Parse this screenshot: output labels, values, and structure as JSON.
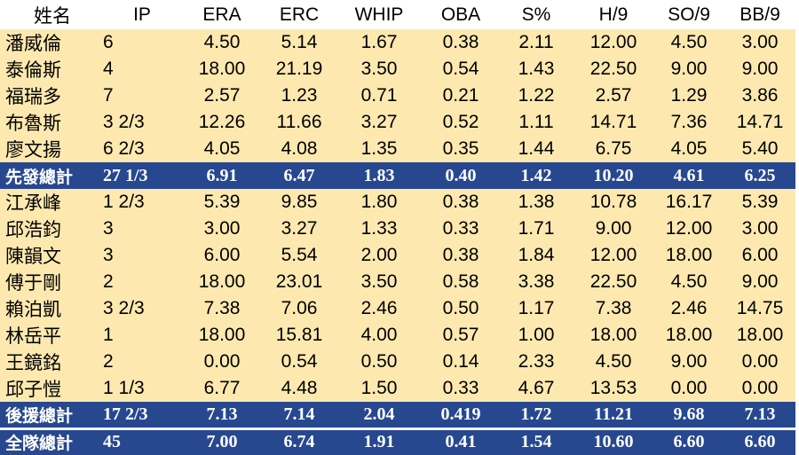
{
  "headers": {
    "name": "姓名",
    "ip": "IP",
    "era": "ERA",
    "erc": "ERC",
    "whip": "WHIP",
    "oba": "OBA",
    "s": "S%",
    "h9": "H/9",
    "so9": "SO/9",
    "bb9": "BB/9"
  },
  "starters": [
    {
      "name": "潘威倫",
      "ip": "6",
      "era": "4.50",
      "erc": "5.14",
      "whip": "1.67",
      "oba": "0.38",
      "s": "2.11",
      "h9": "12.00",
      "so9": "4.50",
      "bb9": "3.00"
    },
    {
      "name": "泰倫斯",
      "ip": "4",
      "era": "18.00",
      "erc": "21.19",
      "whip": "3.50",
      "oba": "0.54",
      "s": "1.43",
      "h9": "22.50",
      "so9": "9.00",
      "bb9": "9.00"
    },
    {
      "name": "福瑞多",
      "ip": "7",
      "era": "2.57",
      "erc": "1.23",
      "whip": "0.71",
      "oba": "0.21",
      "s": "1.22",
      "h9": "2.57",
      "so9": "1.29",
      "bb9": "3.86"
    },
    {
      "name": "布魯斯",
      "ip": "3 2/3",
      "era": "12.26",
      "erc": "11.66",
      "whip": "3.27",
      "oba": "0.52",
      "s": "1.11",
      "h9": "14.71",
      "so9": "7.36",
      "bb9": "14.71"
    },
    {
      "name": "廖文揚",
      "ip": "6 2/3",
      "era": "4.05",
      "erc": "4.08",
      "whip": "1.35",
      "oba": "0.35",
      "s": "1.44",
      "h9": "6.75",
      "so9": "4.05",
      "bb9": "5.40"
    }
  ],
  "starters_total": {
    "name": "先發總計",
    "ip": "27 1/3",
    "era": "6.91",
    "erc": "6.47",
    "whip": "1.83",
    "oba": "0.40",
    "s": "1.42",
    "h9": "10.20",
    "so9": "4.61",
    "bb9": "6.25"
  },
  "relievers": [
    {
      "name": "江承峰",
      "ip": "1 2/3",
      "era": "5.39",
      "erc": "9.85",
      "whip": "1.80",
      "oba": "0.38",
      "s": "1.38",
      "h9": "10.78",
      "so9": "16.17",
      "bb9": "5.39"
    },
    {
      "name": "邱浩鈞",
      "ip": "3",
      "era": "3.00",
      "erc": "3.27",
      "whip": "1.33",
      "oba": "0.33",
      "s": "1.71",
      "h9": "9.00",
      "so9": "12.00",
      "bb9": "3.00"
    },
    {
      "name": "陳韻文",
      "ip": "3",
      "era": "6.00",
      "erc": "5.54",
      "whip": "2.00",
      "oba": "0.38",
      "s": "1.84",
      "h9": "12.00",
      "so9": "18.00",
      "bb9": "6.00"
    },
    {
      "name": "傅于剛",
      "ip": "2",
      "era": "18.00",
      "erc": "23.01",
      "whip": "3.50",
      "oba": "0.58",
      "s": "3.38",
      "h9": "22.50",
      "so9": "4.50",
      "bb9": "9.00"
    },
    {
      "name": "賴泊凱",
      "ip": "3 2/3",
      "era": "7.38",
      "erc": "7.06",
      "whip": "2.46",
      "oba": "0.50",
      "s": "1.17",
      "h9": "7.38",
      "so9": "2.46",
      "bb9": "14.75"
    },
    {
      "name": "林岳平",
      "ip": "1",
      "era": "18.00",
      "erc": "15.81",
      "whip": "4.00",
      "oba": "0.57",
      "s": "1.00",
      "h9": "18.00",
      "so9": "18.00",
      "bb9": "18.00"
    },
    {
      "name": "王鏡銘",
      "ip": "2",
      "era": "0.00",
      "erc": "0.54",
      "whip": "0.50",
      "oba": "0.14",
      "s": "2.33",
      "h9": "4.50",
      "so9": "9.00",
      "bb9": "0.00"
    },
    {
      "name": "邱子愷",
      "ip": "1 1/3",
      "era": "6.77",
      "erc": "4.48",
      "whip": "1.50",
      "oba": "0.33",
      "s": "4.67",
      "h9": "13.53",
      "so9": "0.00",
      "bb9": "0.00"
    }
  ],
  "relievers_total": {
    "name": "後援總計",
    "ip": "17 2/3",
    "era": "7.13",
    "erc": "7.14",
    "whip": "2.04",
    "oba": "0.419",
    "s": "1.72",
    "h9": "11.21",
    "so9": "9.68",
    "bb9": "7.13"
  },
  "team_total": {
    "name": "全隊總計",
    "ip": "45",
    "era": "7.00",
    "erc": "6.74",
    "whip": "1.91",
    "oba": "0.41",
    "s": "1.54",
    "h9": "10.60",
    "so9": "6.60",
    "bb9": "6.60"
  },
  "colors": {
    "row_fill": "#fde9b0",
    "total_fill": "#27488f",
    "total_text": "#ffffff"
  }
}
